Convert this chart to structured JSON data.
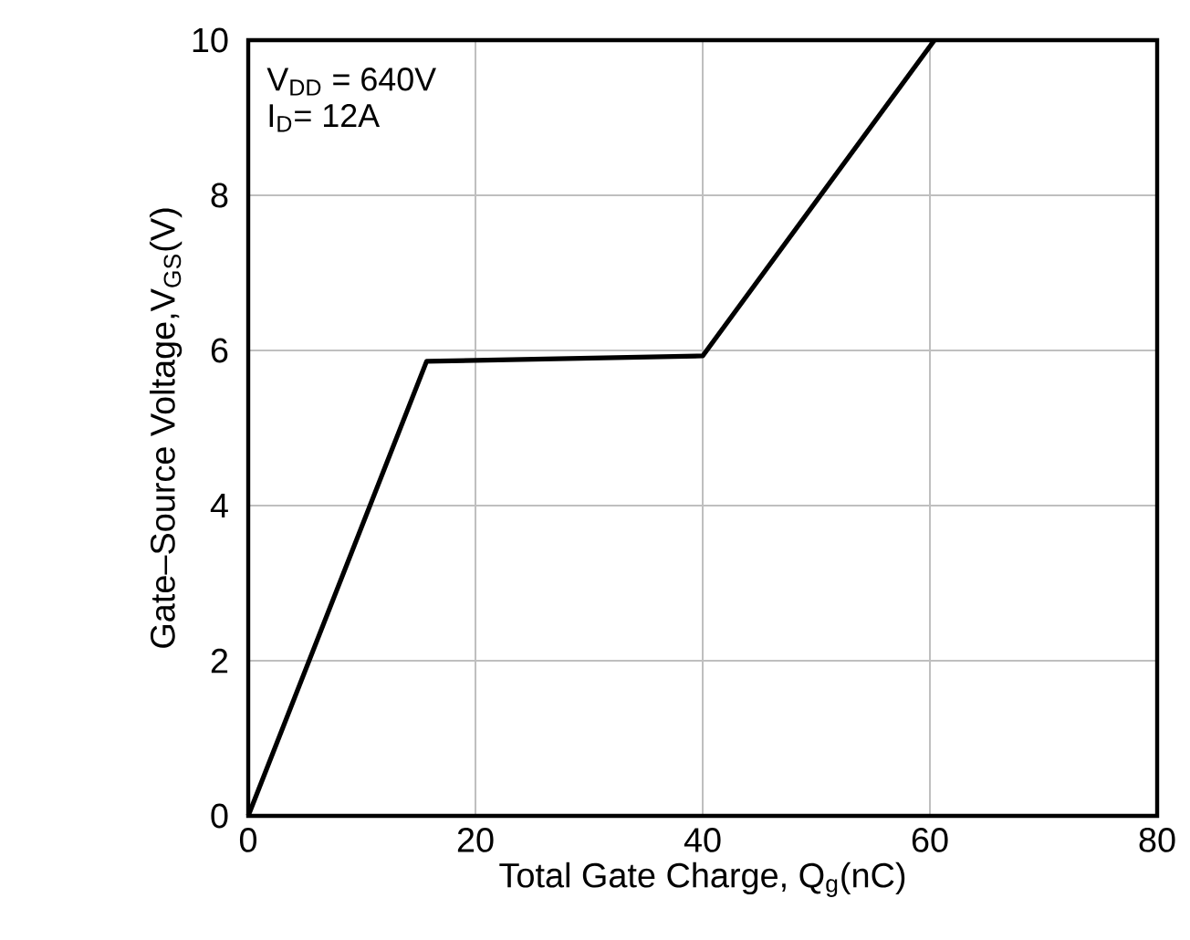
{
  "chart_data": {
    "type": "line",
    "xlabel": "Total Gate Charge, Q$_{g}$(nC)",
    "ylabel": "Gate–Source Voltage,V$_{GS}$(V)",
    "x": [
      0,
      15.7,
      40,
      60.4
    ],
    "series": [
      {
        "color": "#000000",
        "values": [
          0,
          5.86,
          5.93,
          10
        ]
      }
    ],
    "xlim": [
      0,
      80
    ],
    "ylim": [
      0,
      10
    ],
    "xticks": [
      0,
      20,
      40,
      60,
      80
    ],
    "yticks": [
      0,
      2,
      4,
      6,
      8,
      10
    ],
    "grid": true,
    "marker": "none",
    "line_style": "solid",
    "annotations": [
      "V$_{DD}$ = 640V",
      "I$_{D}$= 12A"
    ]
  }
}
